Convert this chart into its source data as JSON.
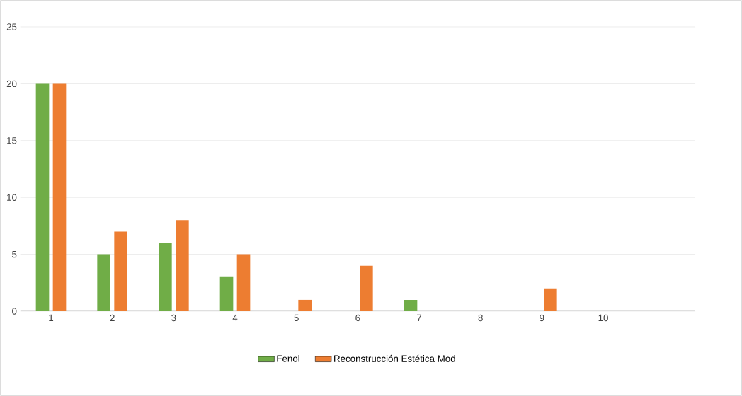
{
  "chart_data": {
    "type": "bar",
    "categories": [
      "1",
      "2",
      "3",
      "4",
      "5",
      "6",
      "7",
      "8",
      "9",
      "10",
      null
    ],
    "series": [
      {
        "name": "Fenol",
        "color": "#70ad47",
        "values": [
          20,
          5,
          6,
          3,
          0,
          0,
          1,
          0,
          0,
          0,
          0
        ]
      },
      {
        "name": "Reconstrucción Estética Mod",
        "color": "#ed7d31",
        "values": [
          20,
          7,
          8,
          5,
          1,
          4,
          0,
          0,
          2,
          0,
          0
        ]
      }
    ],
    "ylim": [
      0,
      25
    ],
    "yticks": [
      0,
      5,
      10,
      15,
      20,
      25
    ],
    "grid": "y",
    "legend": "bottom"
  }
}
